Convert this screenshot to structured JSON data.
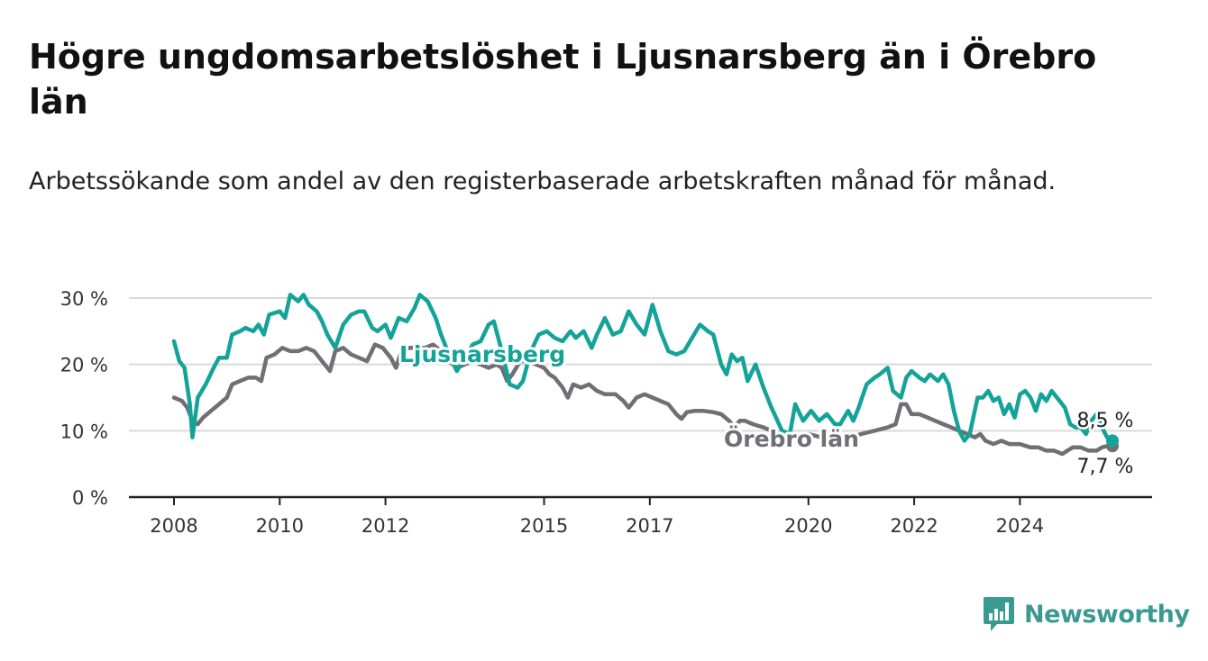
{
  "header": {
    "title": "Högre ungdomsarbetslöshet i Ljusnarsberg än i Örebro län",
    "subtitle": "Arbetssökande som andel av den registerbaserade arbetskraften månad för månad."
  },
  "brand": {
    "name": "Newsworthy",
    "icon": "bar-chart-logo-icon",
    "color": "#3b9a90"
  },
  "chart_data": {
    "type": "line",
    "xlim": [
      2008.0,
      2025.75
    ],
    "ylim": [
      0,
      30
    ],
    "y_ticks": [
      0,
      10,
      20,
      30
    ],
    "y_tick_labels": [
      "0 %",
      "10 %",
      "20 %",
      "30 %"
    ],
    "x_ticks": [
      2008,
      2010,
      2012,
      2015,
      2017,
      2020,
      2022,
      2024
    ],
    "x_tick_labels": [
      "2008",
      "2010",
      "2012",
      "2015",
      "2017",
      "2020",
      "2022",
      "2024"
    ],
    "grid": true,
    "series": [
      {
        "name": "Ljusnarsberg",
        "color": "#14a398",
        "end_label": "8,5 %",
        "points": [
          [
            2008.0,
            23.5
          ],
          [
            2008.1,
            20.5
          ],
          [
            2008.2,
            19.5
          ],
          [
            2008.3,
            14.0
          ],
          [
            2008.35,
            9.0
          ],
          [
            2008.45,
            15.0
          ],
          [
            2008.6,
            17.0
          ],
          [
            2008.75,
            19.5
          ],
          [
            2008.85,
            21.0
          ],
          [
            2009.0,
            21.0
          ],
          [
            2009.1,
            24.5
          ],
          [
            2009.25,
            25.0
          ],
          [
            2009.35,
            25.5
          ],
          [
            2009.5,
            25.0
          ],
          [
            2009.6,
            26.0
          ],
          [
            2009.7,
            24.5
          ],
          [
            2009.8,
            27.5
          ],
          [
            2010.0,
            28.0
          ],
          [
            2010.1,
            27.0
          ],
          [
            2010.2,
            30.5
          ],
          [
            2010.35,
            29.5
          ],
          [
            2010.45,
            30.5
          ],
          [
            2010.55,
            29.0
          ],
          [
            2010.7,
            28.0
          ],
          [
            2010.8,
            26.5
          ],
          [
            2010.9,
            24.5
          ],
          [
            2011.05,
            22.5
          ],
          [
            2011.2,
            26.0
          ],
          [
            2011.35,
            27.5
          ],
          [
            2011.5,
            28.0
          ],
          [
            2011.6,
            28.0
          ],
          [
            2011.75,
            25.5
          ],
          [
            2011.85,
            25.0
          ],
          [
            2012.0,
            26.0
          ],
          [
            2012.1,
            24.0
          ],
          [
            2012.25,
            27.0
          ],
          [
            2012.4,
            26.5
          ],
          [
            2012.55,
            28.5
          ],
          [
            2012.65,
            30.5
          ],
          [
            2012.8,
            29.5
          ],
          [
            2012.95,
            27.0
          ],
          [
            2013.05,
            24.5
          ],
          [
            2013.2,
            21.5
          ],
          [
            2013.35,
            19.0
          ],
          [
            2013.5,
            21.0
          ],
          [
            2013.65,
            23.0
          ],
          [
            2013.8,
            23.5
          ],
          [
            2013.95,
            26.0
          ],
          [
            2014.05,
            26.5
          ],
          [
            2014.2,
            22.0
          ],
          [
            2014.35,
            17.0
          ],
          [
            2014.5,
            16.5
          ],
          [
            2014.6,
            17.5
          ],
          [
            2014.75,
            22.0
          ],
          [
            2014.9,
            24.5
          ],
          [
            2015.05,
            25.0
          ],
          [
            2015.2,
            24.0
          ],
          [
            2015.35,
            23.5
          ],
          [
            2015.5,
            25.0
          ],
          [
            2015.6,
            24.0
          ],
          [
            2015.75,
            25.0
          ],
          [
            2015.9,
            22.5
          ],
          [
            2016.0,
            24.5
          ],
          [
            2016.15,
            27.0
          ],
          [
            2016.3,
            24.5
          ],
          [
            2016.45,
            25.0
          ],
          [
            2016.6,
            28.0
          ],
          [
            2016.75,
            26.0
          ],
          [
            2016.9,
            24.5
          ],
          [
            2017.05,
            29.0
          ],
          [
            2017.2,
            25.0
          ],
          [
            2017.35,
            22.0
          ],
          [
            2017.5,
            21.5
          ],
          [
            2017.65,
            22.0
          ],
          [
            2017.8,
            24.0
          ],
          [
            2017.95,
            26.0
          ],
          [
            2018.1,
            25.0
          ],
          [
            2018.2,
            24.5
          ],
          [
            2018.35,
            20.0
          ],
          [
            2018.45,
            18.5
          ],
          [
            2018.55,
            21.5
          ],
          [
            2018.65,
            20.5
          ],
          [
            2018.75,
            21.0
          ],
          [
            2018.85,
            17.5
          ],
          [
            2019.0,
            20.0
          ],
          [
            2019.15,
            16.5
          ],
          [
            2019.3,
            13.5
          ],
          [
            2019.5,
            10.0
          ],
          [
            2019.65,
            9.5
          ],
          [
            2019.75,
            14.0
          ],
          [
            2019.9,
            11.5
          ],
          [
            2020.05,
            13.0
          ],
          [
            2020.2,
            11.5
          ],
          [
            2020.35,
            12.5
          ],
          [
            2020.5,
            11.0
          ],
          [
            2020.6,
            11.0
          ],
          [
            2020.75,
            13.0
          ],
          [
            2020.85,
            11.5
          ],
          [
            2020.95,
            13.5
          ],
          [
            2021.1,
            17.0
          ],
          [
            2021.25,
            18.0
          ],
          [
            2021.35,
            18.5
          ],
          [
            2021.5,
            19.5
          ],
          [
            2021.6,
            16.0
          ],
          [
            2021.75,
            15.0
          ],
          [
            2021.85,
            18.0
          ],
          [
            2021.95,
            19.0
          ],
          [
            2022.1,
            18.0
          ],
          [
            2022.2,
            17.5
          ],
          [
            2022.3,
            18.5
          ],
          [
            2022.45,
            17.5
          ],
          [
            2022.55,
            18.5
          ],
          [
            2022.65,
            17.0
          ],
          [
            2022.75,
            13.0
          ],
          [
            2022.85,
            10.0
          ],
          [
            2022.95,
            8.5
          ],
          [
            2023.05,
            9.5
          ],
          [
            2023.2,
            15.0
          ],
          [
            2023.3,
            15.0
          ],
          [
            2023.4,
            16.0
          ],
          [
            2023.5,
            14.5
          ],
          [
            2023.6,
            15.0
          ],
          [
            2023.7,
            12.5
          ],
          [
            2023.8,
            14.0
          ],
          [
            2023.9,
            12.0
          ],
          [
            2024.0,
            15.5
          ],
          [
            2024.1,
            16.0
          ],
          [
            2024.2,
            15.0
          ],
          [
            2024.3,
            13.0
          ],
          [
            2024.4,
            15.5
          ],
          [
            2024.5,
            14.5
          ],
          [
            2024.6,
            16.0
          ],
          [
            2024.75,
            14.5
          ],
          [
            2024.85,
            13.5
          ],
          [
            2024.95,
            11.0
          ],
          [
            2025.05,
            10.5
          ],
          [
            2025.15,
            10.5
          ],
          [
            2025.25,
            9.5
          ],
          [
            2025.35,
            11.5
          ],
          [
            2025.45,
            12.5
          ],
          [
            2025.55,
            10.5
          ],
          [
            2025.65,
            9.0
          ],
          [
            2025.75,
            8.5
          ]
        ]
      },
      {
        "name": "Örebro län",
        "color": "#6f6f75",
        "end_label": "7,7 %",
        "points": [
          [
            2008.0,
            15.0
          ],
          [
            2008.15,
            14.5
          ],
          [
            2008.25,
            13.5
          ],
          [
            2008.35,
            11.5
          ],
          [
            2008.45,
            11.0
          ],
          [
            2008.55,
            12.0
          ],
          [
            2008.7,
            13.0
          ],
          [
            2008.85,
            14.0
          ],
          [
            2009.0,
            15.0
          ],
          [
            2009.1,
            17.0
          ],
          [
            2009.25,
            17.5
          ],
          [
            2009.4,
            18.0
          ],
          [
            2009.55,
            18.0
          ],
          [
            2009.65,
            17.5
          ],
          [
            2009.75,
            21.0
          ],
          [
            2009.9,
            21.5
          ],
          [
            2010.05,
            22.5
          ],
          [
            2010.2,
            22.0
          ],
          [
            2010.35,
            22.0
          ],
          [
            2010.5,
            22.5
          ],
          [
            2010.65,
            22.0
          ],
          [
            2010.8,
            20.5
          ],
          [
            2010.95,
            19.0
          ],
          [
            2011.05,
            22.0
          ],
          [
            2011.2,
            22.5
          ],
          [
            2011.35,
            21.5
          ],
          [
            2011.5,
            21.0
          ],
          [
            2011.65,
            20.5
          ],
          [
            2011.8,
            23.0
          ],
          [
            2011.95,
            22.5
          ],
          [
            2012.1,
            21.0
          ],
          [
            2012.2,
            19.5
          ],
          [
            2012.3,
            22.0
          ],
          [
            2012.45,
            22.5
          ],
          [
            2012.6,
            22.5
          ],
          [
            2012.75,
            22.5
          ],
          [
            2012.9,
            23.0
          ],
          [
            2013.05,
            22.0
          ],
          [
            2013.2,
            20.5
          ],
          [
            2013.35,
            19.5
          ],
          [
            2013.5,
            20.0
          ],
          [
            2013.65,
            20.5
          ],
          [
            2013.8,
            20.0
          ],
          [
            2013.95,
            19.5
          ],
          [
            2014.1,
            20.0
          ],
          [
            2014.2,
            19.5
          ],
          [
            2014.3,
            17.5
          ],
          [
            2014.4,
            18.5
          ],
          [
            2014.55,
            20.5
          ],
          [
            2014.7,
            20.5
          ],
          [
            2014.85,
            20.0
          ],
          [
            2015.0,
            19.5
          ],
          [
            2015.1,
            18.5
          ],
          [
            2015.2,
            18.0
          ],
          [
            2015.35,
            16.5
          ],
          [
            2015.45,
            15.0
          ],
          [
            2015.55,
            17.0
          ],
          [
            2015.7,
            16.5
          ],
          [
            2015.85,
            17.0
          ],
          [
            2016.0,
            16.0
          ],
          [
            2016.15,
            15.5
          ],
          [
            2016.35,
            15.5
          ],
          [
            2016.5,
            14.5
          ],
          [
            2016.6,
            13.5
          ],
          [
            2016.75,
            15.0
          ],
          [
            2016.9,
            15.5
          ],
          [
            2017.05,
            15.0
          ],
          [
            2017.2,
            14.5
          ],
          [
            2017.35,
            14.0
          ],
          [
            2017.5,
            12.5
          ],
          [
            2017.6,
            11.8
          ],
          [
            2017.7,
            12.8
          ],
          [
            2017.85,
            13.0
          ],
          [
            2018.0,
            13.0
          ],
          [
            2018.2,
            12.8
          ],
          [
            2018.35,
            12.5
          ],
          [
            2018.5,
            11.5
          ],
          [
            2018.6,
            10.5
          ],
          [
            2018.7,
            11.5
          ],
          [
            2018.8,
            11.5
          ],
          [
            2018.95,
            11.0
          ],
          [
            2019.15,
            10.5
          ],
          [
            2019.3,
            10.0
          ],
          [
            2019.45,
            9.5
          ],
          [
            2019.6,
            9.0
          ],
          [
            2019.75,
            9.0
          ],
          [
            2020.0,
            9.5
          ],
          [
            2020.25,
            9.0
          ],
          [
            2020.5,
            9.0
          ],
          [
            2020.75,
            9.0
          ],
          [
            2021.0,
            9.5
          ],
          [
            2021.25,
            10.0
          ],
          [
            2021.5,
            10.5
          ],
          [
            2021.65,
            11.0
          ],
          [
            2021.75,
            14.0
          ],
          [
            2021.85,
            14.0
          ],
          [
            2021.95,
            12.5
          ],
          [
            2022.1,
            12.5
          ],
          [
            2022.25,
            12.0
          ],
          [
            2022.4,
            11.5
          ],
          [
            2022.55,
            11.0
          ],
          [
            2022.7,
            10.5
          ],
          [
            2022.85,
            10.0
          ],
          [
            2023.0,
            9.5
          ],
          [
            2023.15,
            9.0
          ],
          [
            2023.25,
            9.5
          ],
          [
            2023.35,
            8.5
          ],
          [
            2023.5,
            8.0
          ],
          [
            2023.65,
            8.5
          ],
          [
            2023.8,
            8.0
          ],
          [
            2024.0,
            8.0
          ],
          [
            2024.2,
            7.5
          ],
          [
            2024.35,
            7.5
          ],
          [
            2024.5,
            7.0
          ],
          [
            2024.65,
            7.0
          ],
          [
            2024.8,
            6.5
          ],
          [
            2024.9,
            7.0
          ],
          [
            2025.0,
            7.5
          ],
          [
            2025.15,
            7.5
          ],
          [
            2025.3,
            7.0
          ],
          [
            2025.45,
            7.0
          ],
          [
            2025.55,
            7.5
          ],
          [
            2025.65,
            7.7
          ],
          [
            2025.75,
            7.7
          ]
        ]
      }
    ]
  }
}
